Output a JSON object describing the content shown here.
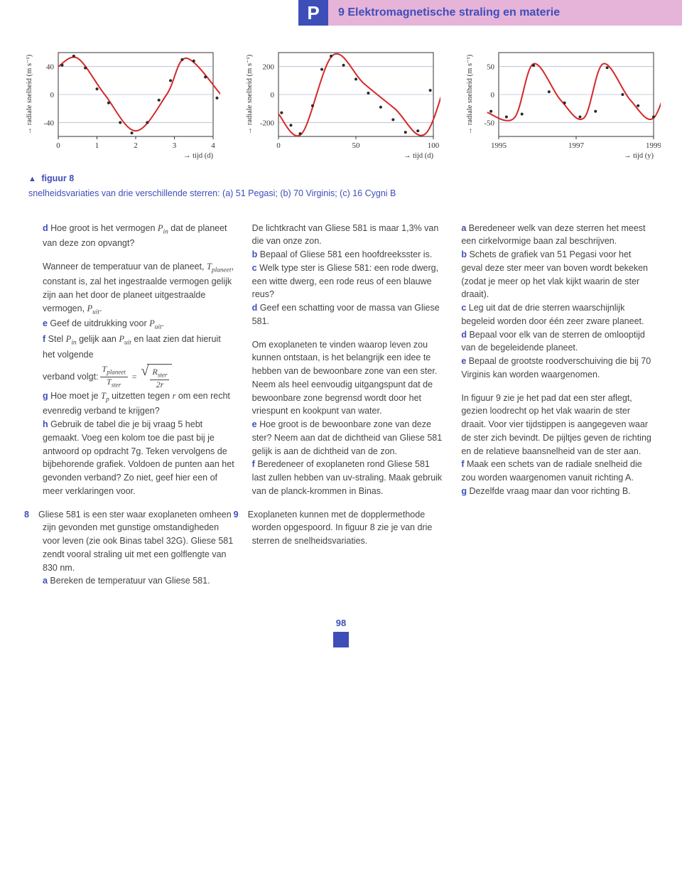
{
  "header": {
    "letter": "P",
    "title": "9 Elektromagnetische straling en materie"
  },
  "charts": {
    "a": {
      "type": "line-scatter",
      "ylabel": "→ radiale snelheid (m s⁻¹)",
      "xlabel": "→ tijd (d)",
      "yticks": [
        -40,
        0,
        40
      ],
      "xticks": [
        0,
        1,
        2,
        3,
        4
      ],
      "line_color": "#d62828",
      "point_color": "#2a2a2a",
      "axis_color": "#333333",
      "grid_color": "#9aa0bf",
      "background": "#ffffff",
      "curve": [
        [
          0,
          40
        ],
        [
          0.5,
          52
        ],
        [
          1.2,
          0
        ],
        [
          2.0,
          -52
        ],
        [
          2.8,
          0
        ],
        [
          3.3,
          52
        ],
        [
          4.2,
          0
        ]
      ],
      "points": [
        [
          0.1,
          42
        ],
        [
          0.4,
          55
        ],
        [
          0.7,
          38
        ],
        [
          1.0,
          8
        ],
        [
          1.3,
          -12
        ],
        [
          1.6,
          -40
        ],
        [
          1.9,
          -55
        ],
        [
          2.3,
          -40
        ],
        [
          2.6,
          -8
        ],
        [
          2.9,
          20
        ],
        [
          3.2,
          50
        ],
        [
          3.5,
          48
        ],
        [
          3.8,
          25
        ],
        [
          4.1,
          -5
        ],
        [
          4.3,
          -25
        ]
      ]
    },
    "b": {
      "type": "line-scatter",
      "ylabel": "→ radiale snelheid (m s⁻¹)",
      "xlabel": "→ tijd (d)",
      "yticks": [
        -200,
        0,
        200
      ],
      "xticks": [
        0,
        50,
        100
      ],
      "line_color": "#d62828",
      "point_color": "#2a2a2a",
      "axis_color": "#333333",
      "grid_color": "#9aa0bf",
      "background": "#ffffff",
      "curve": [
        [
          0,
          -140
        ],
        [
          15,
          -280
        ],
        [
          35,
          280
        ],
        [
          55,
          80
        ],
        [
          75,
          -100
        ],
        [
          95,
          -280
        ],
        [
          115,
          280
        ],
        [
          130,
          150
        ]
      ],
      "points": [
        [
          2,
          -130
        ],
        [
          8,
          -220
        ],
        [
          14,
          -280
        ],
        [
          22,
          -80
        ],
        [
          28,
          180
        ],
        [
          34,
          275
        ],
        [
          42,
          210
        ],
        [
          50,
          110
        ],
        [
          58,
          10
        ],
        [
          66,
          -90
        ],
        [
          74,
          -180
        ],
        [
          82,
          -270
        ],
        [
          90,
          -260
        ],
        [
          98,
          30
        ],
        [
          106,
          260
        ],
        [
          114,
          270
        ],
        [
          122,
          200
        ],
        [
          128,
          150
        ]
      ]
    },
    "c": {
      "type": "line-scatter",
      "ylabel": "→ radiale snelheid (m s⁻¹)",
      "xlabel": "→ tijd (y)",
      "yticks": [
        -50,
        0,
        50
      ],
      "xticks": [
        1995,
        1997,
        1999
      ],
      "line_color": "#d62828",
      "point_color": "#2a2a2a",
      "axis_color": "#333333",
      "grid_color": "#9aa0bf",
      "background": "#ffffff",
      "curve": [
        [
          1994.7,
          -32
        ],
        [
          1995.4,
          -42
        ],
        [
          1995.9,
          55
        ],
        [
          1996.6,
          -10
        ],
        [
          1997.2,
          -42
        ],
        [
          1997.7,
          55
        ],
        [
          1998.4,
          -10
        ],
        [
          1999.0,
          -42
        ],
        [
          1999.5,
          55
        ]
      ],
      "points": [
        [
          1994.8,
          -30
        ],
        [
          1995.2,
          -40
        ],
        [
          1995.6,
          -35
        ],
        [
          1995.9,
          52
        ],
        [
          1996.3,
          5
        ],
        [
          1996.7,
          -15
        ],
        [
          1997.1,
          -40
        ],
        [
          1997.5,
          -30
        ],
        [
          1997.8,
          48
        ],
        [
          1998.2,
          0
        ],
        [
          1998.6,
          -20
        ],
        [
          1999.0,
          -40
        ],
        [
          1999.3,
          -25
        ],
        [
          1999.6,
          50
        ]
      ]
    }
  },
  "figure": {
    "label": "figuur 8",
    "caption": "snelheidsvariaties van drie verschillende sterren: (a) 51 Pegasi; (b) 70 Virginis; (c) 16 Cygni B"
  },
  "col1": {
    "d_lead": "d",
    "d_text": "  Hoe groot is het vermogen ",
    "d_var": "P",
    "d_sub": "in",
    "d_tail": " dat de planeet van deze zon opvangt?",
    "para2a": "Wanneer de temperatuur van de planeet, ",
    "para2_var": "T",
    "para2_sub": "planeet",
    "para2b": ", constant is, zal het ingestraalde vermogen gelijk zijn aan het door de planeet uitgestraalde vermogen, ",
    "para2_var2": "P",
    "para2_sub2": "uit",
    "para2c": ".",
    "e_lead": "e",
    "e_text": "  Geef de uitdrukking voor ",
    "e_var": "P",
    "e_sub": "uit",
    "e_tail": ".",
    "f_lead": "f",
    "f_text": "  Stel ",
    "f_v1": "P",
    "f_s1": "in",
    "f_mid": " gelijk aan ",
    "f_v2": "P",
    "f_s2": "uit",
    "f_tail": " en laat zien dat hieruit het volgende",
    "verband": "verband volgt: ",
    "eq": {
      "tp": "T",
      "tp_sub": "planeet",
      "ts": "T",
      "ts_sub": "ster",
      "rs": "R",
      "rs_sub": "ster",
      "denom": "2r"
    },
    "g_lead": "g",
    "g_text": "  Hoe moet je ",
    "g_var": "T",
    "g_sub": "p",
    "g_mid": " uitzetten tegen ",
    "g_var2": "r",
    "g_tail": " om een recht evenredig verband te krijgen?",
    "h_lead": "h",
    "h_text": "  Gebruik de tabel die je bij vraag 5 hebt gemaakt. Voeg een kolom toe die past bij je antwoord op opdracht 7g. Teken vervolgens de bijbehorende grafiek. Voldoen de punten aan het gevonden verband? Zo niet, geef hier een of meer verklaringen voor.",
    "q8_num": "8",
    "q8_text": "Gliese 581 is een ster waar exoplaneten omheen zijn gevonden met gunstige omstandigheden voor leven (zie ook Binas tabel 32G). Gliese 581 zendt vooral straling uit met een golflengte van 830 nm.",
    "q8a_lead": "a",
    "q8a_text": "  Bereken de temperatuur van Gliese 581."
  },
  "col2": {
    "p1": "De lichtkracht van Gliese 581 is maar 1,3% van die van onze zon.",
    "b_lead": "b",
    "b_text": "  Bepaal of Gliese 581 een hoofdreeksster is.",
    "c_lead": "c",
    "c_text": "  Welk type ster is Gliese 581: een rode dwerg, een witte dwerg, een rode reus of een blauwe reus?",
    "d_lead": "d",
    "d_text": "  Geef een schatting voor de massa van Gliese 581.",
    "p2": "Om exoplaneten te vinden waarop leven zou kunnen ontstaan, is het belangrijk een idee te hebben van de bewoonbare zone van een ster. Neem als heel eenvoudig uitgangspunt dat de bewoonbare zone begrensd wordt door het vriespunt en kookpunt van water.",
    "e_lead": "e",
    "e_text": "  Hoe groot is de bewoonbare zone van deze ster? Neem aan dat de dichtheid van Gliese 581 gelijk is aan de dichtheid van de zon.",
    "f_lead": "f",
    "f_text": "  Beredeneer of exoplaneten rond Gliese 581 last zullen hebben van uv-straling. Maak gebruik van de planck-krommen in Binas.",
    "q9_num": "9",
    "q9_text": "Exoplaneten kunnen met de dopplermethode worden opgespoord. In figuur 8 zie je van drie sterren de snelheidsvariaties."
  },
  "col3": {
    "a_lead": "a",
    "a_text": "  Beredeneer welk van deze sterren het meest een cirkelvormige baan zal beschrijven.",
    "b_lead": "b",
    "b_text": "  Schets de grafiek van 51 Pegasi voor het geval deze ster meer van boven wordt bekeken (zodat je meer op het vlak kijkt waarin de ster draait).",
    "c_lead": "c",
    "c_text": "  Leg uit dat de drie sterren waarschijnlijk begeleid worden door één zeer zware planeet.",
    "d_lead": "d",
    "d_text": "  Bepaal voor elk van de sterren de omlooptijd van de begeleidende planeet.",
    "e_lead": "e",
    "e_text": "  Bepaal de grootste roodverschuiving die bij 70 Virginis kan worden waargenomen.",
    "p1": "In figuur 9 zie je het pad dat een ster aflegt, gezien loodrecht op het vlak waarin de ster draait. Voor vier tijdstippen is aangegeven waar de ster zich bevindt. De pijltjes geven de richting en de relatieve baansnelheid van de ster aan.",
    "f_lead": "f",
    "f_text": "  Maak een schets van de radiale snelheid die zou worden waargenomen vanuit richting A.",
    "g_lead": "g",
    "g_text": "  Dezelfde vraag maar dan voor richting B."
  },
  "page_number": "98"
}
